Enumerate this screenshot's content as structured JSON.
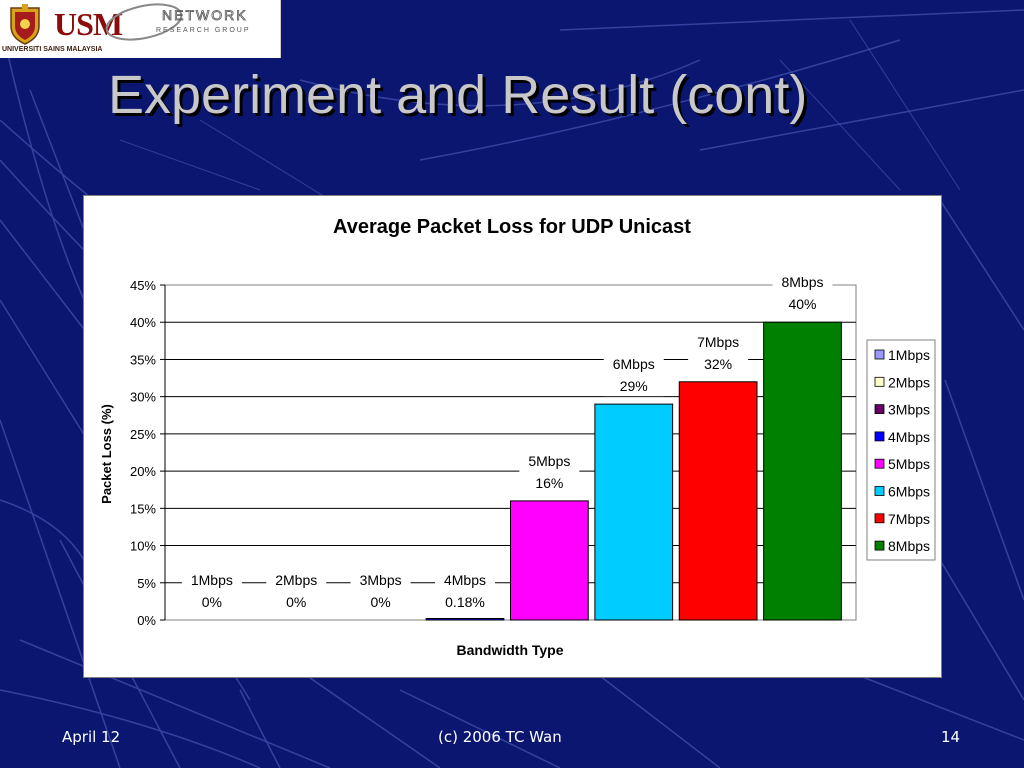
{
  "slide": {
    "title": "Experiment and Result (cont)",
    "footer_left": "April 12",
    "footer_center": "(c) 2006 TC Wan",
    "footer_right": "14"
  },
  "logos": {
    "usm_text": "USM",
    "usm_caption": "UNIVERSITI SAINS MALAYSIA",
    "network_line1": "NETWORK",
    "network_line2": "RESEARCH GROUP"
  },
  "colors": {
    "background": "#0b1670",
    "title": "#c8c8c8",
    "chart_background": "#ffffff"
  },
  "chart_data": {
    "type": "bar",
    "title": "Average Packet Loss for UDP Unicast",
    "xlabel": "Bandwidth Type",
    "ylabel": "Packet Loss (%)",
    "ylim": [
      0,
      45
    ],
    "yticks": [
      "0%",
      "5%",
      "10%",
      "15%",
      "20%",
      "25%",
      "30%",
      "35%",
      "40%",
      "45%"
    ],
    "grid": true,
    "legend_position": "right",
    "series": [
      {
        "name": "1Mbps",
        "value": 0,
        "label": "0%",
        "color": "#9999ff"
      },
      {
        "name": "2Mbps",
        "value": 0,
        "label": "0%",
        "color": "#ffffcc"
      },
      {
        "name": "3Mbps",
        "value": 0,
        "label": "0%",
        "color": "#660066"
      },
      {
        "name": "4Mbps",
        "value": 0.18,
        "label": "0.18%",
        "color": "#0000ff"
      },
      {
        "name": "5Mbps",
        "value": 16,
        "label": "16%",
        "color": "#ff00ff"
      },
      {
        "name": "6Mbps",
        "value": 29,
        "label": "29%",
        "color": "#00ccff"
      },
      {
        "name": "7Mbps",
        "value": 32,
        "label": "32%",
        "color": "#ff0000"
      },
      {
        "name": "8Mbps",
        "value": 40,
        "label": "40%",
        "color": "#008000"
      }
    ]
  }
}
